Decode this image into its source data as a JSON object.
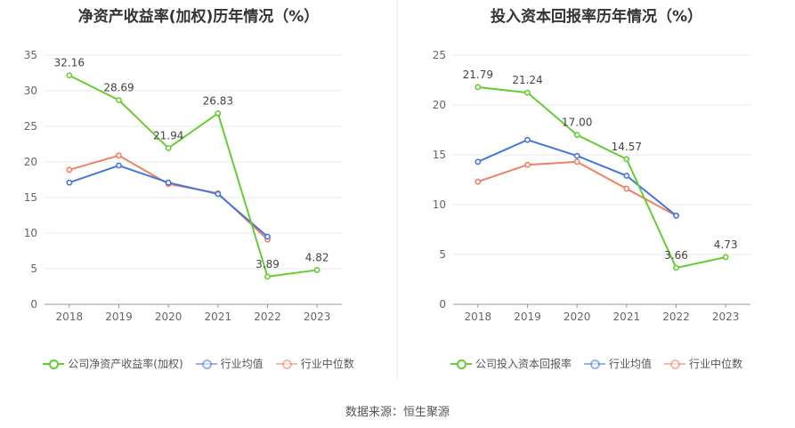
{
  "chart_data": [
    {
      "type": "line",
      "title": "净资产收益率(加权)历年情况（%）",
      "categories": [
        "2018",
        "2019",
        "2020",
        "2021",
        "2022",
        "2023"
      ],
      "ylim": [
        0,
        35
      ],
      "yticks": [
        0,
        5,
        10,
        15,
        20,
        25,
        30,
        35
      ],
      "grid": true,
      "legend": "bottom",
      "series": [
        {
          "name": "公司净资产收益率(加权)",
          "color": "#66cc33",
          "values": [
            32.16,
            28.69,
            21.94,
            26.83,
            3.89,
            4.82
          ],
          "labels": true
        },
        {
          "name": "行业均值",
          "color": "#4477dd",
          "values": [
            17.1,
            19.5,
            17.1,
            15.5,
            9.5,
            null
          ],
          "labels": false
        },
        {
          "name": "行业中位数",
          "color": "#f08060",
          "values": [
            18.9,
            20.9,
            16.9,
            15.6,
            9.1,
            null
          ],
          "labels": false
        }
      ]
    },
    {
      "type": "line",
      "title": "投入资本回报率历年情况（%）",
      "categories": [
        "2018",
        "2019",
        "2020",
        "2021",
        "2022",
        "2023"
      ],
      "ylim": [
        0,
        25
      ],
      "yticks": [
        0,
        5,
        10,
        15,
        20,
        25
      ],
      "grid": true,
      "legend": "bottom",
      "series": [
        {
          "name": "公司投入资本回报率",
          "color": "#66cc33",
          "values": [
            21.79,
            21.24,
            17.0,
            14.57,
            3.66,
            4.73
          ],
          "labels": true
        },
        {
          "name": "行业均值",
          "color": "#4477dd",
          "values": [
            14.3,
            16.5,
            14.9,
            12.9,
            8.9,
            null
          ],
          "labels": false
        },
        {
          "name": "行业中位数",
          "color": "#f08060",
          "values": [
            12.3,
            14.0,
            14.3,
            11.6,
            8.9,
            null
          ],
          "labels": false
        }
      ]
    }
  ],
  "source": "数据来源：恒生聚源"
}
